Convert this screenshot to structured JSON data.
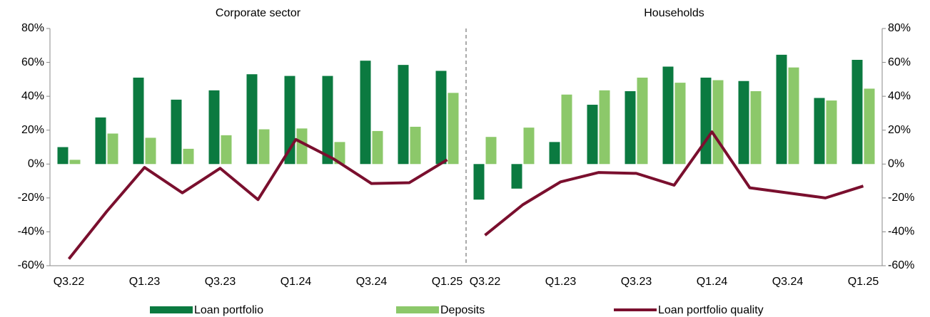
{
  "chart_data": [
    {
      "type": "bar",
      "title": "Corporate sector",
      "categories": [
        "Q3.22",
        null,
        "Q1.23",
        null,
        "Q3.23",
        null,
        "Q1.24",
        null,
        "Q3.24",
        null,
        "Q1.25"
      ],
      "series": [
        {
          "name": "Loan portfolio",
          "color": "#0b7a40",
          "type": "bar",
          "values": [
            10,
            27.5,
            51,
            38,
            43.5,
            53,
            52,
            52,
            61,
            58.5,
            55
          ]
        },
        {
          "name": "Deposits",
          "color": "#8cc86a",
          "type": "bar",
          "values": [
            2.5,
            18,
            15.5,
            9,
            17,
            20.5,
            21,
            13,
            19.5,
            22,
            42
          ]
        },
        {
          "name": "Loan portfolio quality",
          "color": "#7a0f2e",
          "type": "line",
          "values": [
            -56,
            -28,
            -2,
            -17,
            -2.5,
            -21,
            14.5,
            3,
            -11.5,
            -11,
            2.5
          ]
        }
      ],
      "ylim": [
        -60,
        80
      ],
      "yticks": [
        {
          "value": -60,
          "label": "-60%"
        },
        {
          "value": -40,
          "label": "-40%"
        },
        {
          "value": -20,
          "label": "-20%"
        },
        {
          "value": 0,
          "label": "0%"
        },
        {
          "value": 20,
          "label": "20%"
        },
        {
          "value": 40,
          "label": "40%"
        },
        {
          "value": 60,
          "label": "60%"
        },
        {
          "value": 80,
          "label": "80%"
        }
      ]
    },
    {
      "type": "bar",
      "title": "Households",
      "categories": [
        "Q3.22",
        null,
        "Q1.23",
        null,
        "Q3.23",
        null,
        "Q1.24",
        null,
        "Q3.24",
        null,
        "Q1.25"
      ],
      "series": [
        {
          "color": "#0b7a40",
          "type": "bar",
          "values": [
            -21,
            -14.5,
            13,
            35,
            43,
            57.5,
            51,
            49,
            64.5,
            39,
            61.5
          ]
        },
        {
          "color": "#8cc86a",
          "type": "bar",
          "values": [
            16,
            21.5,
            41,
            43.5,
            51,
            48,
            49.5,
            43,
            57,
            37.5,
            44.5
          ]
        },
        {
          "color": "#7a0f2e",
          "type": "line",
          "values": [
            -42,
            -24,
            -10.5,
            -5,
            -5.5,
            -12.5,
            19,
            -14,
            -17,
            -20,
            -13
          ]
        }
      ],
      "ylim": [
        -60,
        80
      ],
      "yticks": [
        {
          "value": -60,
          "label": "-60%"
        },
        {
          "value": -40,
          "label": "-40%"
        },
        {
          "value": -20,
          "label": "-20%"
        },
        {
          "value": 0,
          "label": "0%"
        },
        {
          "value": 20,
          "label": "20%"
        },
        {
          "value": 40,
          "label": "40%"
        },
        {
          "value": 60,
          "label": "60%"
        },
        {
          "value": 80,
          "label": "80%"
        }
      ]
    }
  ]
}
